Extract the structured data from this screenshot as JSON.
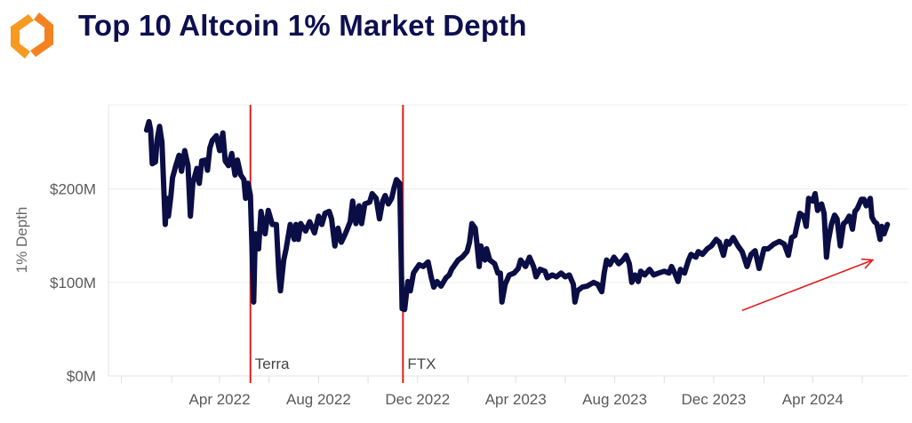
{
  "header": {
    "title": "Top 10 Altcoin 1% Market Depth",
    "logo_colors": [
      "#f7a12a",
      "#f37a1f"
    ]
  },
  "chart_data": {
    "type": "line",
    "title": "Top 10 Altcoin 1% Market Depth",
    "xlabel": "",
    "ylabel": "1% Depth",
    "xlim": [
      "2021-11-15",
      "2024-07-28"
    ],
    "ylim": [
      0,
      290
    ],
    "grid": true,
    "y_ticks": [
      0,
      100,
      200
    ],
    "y_tick_labels": [
      "$0M",
      "$100M",
      "$200M"
    ],
    "x_ticks": [
      "2021-12-01",
      "2022-02-01",
      "2022-04-01",
      "2022-06-01",
      "2022-08-01",
      "2022-10-01",
      "2022-12-01",
      "2023-02-01",
      "2023-04-01",
      "2023-06-01",
      "2023-08-01",
      "2023-10-01",
      "2023-12-01",
      "2024-02-01",
      "2024-04-01",
      "2024-06-01"
    ],
    "x_tick_labels": [
      {
        "date": "2022-04-01",
        "label": "Apr 2022"
      },
      {
        "date": "2022-08-01",
        "label": "Aug 2022"
      },
      {
        "date": "2022-12-01",
        "label": "Dec 2022"
      },
      {
        "date": "2023-04-01",
        "label": "Apr 2023"
      },
      {
        "date": "2023-08-01",
        "label": "Aug 2023"
      },
      {
        "date": "2023-12-01",
        "label": "Dec 2023"
      },
      {
        "date": "2024-04-01",
        "label": "Apr 2024"
      }
    ],
    "line_color": "#0b0d45",
    "annotation_color": "#e01e1e",
    "events": [
      {
        "date": "2022-05-09",
        "label": "Terra"
      },
      {
        "date": "2022-11-13",
        "label": "FTX"
      }
    ],
    "trend_arrow": {
      "from": [
        "2024-01-05",
        70
      ],
      "to": [
        "2024-06-14",
        124
      ]
    },
    "series": [
      {
        "values": [
          [
            "2022-01-01",
            263
          ],
          [
            "2022-01-04",
            272
          ],
          [
            "2022-01-06",
            263
          ],
          [
            "2022-01-08",
            227
          ],
          [
            "2022-01-12",
            229
          ],
          [
            "2022-01-14",
            253
          ],
          [
            "2022-01-17",
            267
          ],
          [
            "2022-01-20",
            250
          ],
          [
            "2022-01-24",
            162
          ],
          [
            "2022-01-26",
            190
          ],
          [
            "2022-01-28",
            171
          ],
          [
            "2022-01-31",
            193
          ],
          [
            "2022-02-02",
            212
          ],
          [
            "2022-02-06",
            225
          ],
          [
            "2022-02-10",
            236
          ],
          [
            "2022-02-13",
            219
          ],
          [
            "2022-02-17",
            241
          ],
          [
            "2022-02-21",
            225
          ],
          [
            "2022-02-24",
            171
          ],
          [
            "2022-02-27",
            206
          ],
          [
            "2022-03-04",
            222
          ],
          [
            "2022-03-07",
            206
          ],
          [
            "2022-03-10",
            230
          ],
          [
            "2022-03-15",
            231
          ],
          [
            "2022-03-17",
            220
          ],
          [
            "2022-03-20",
            244
          ],
          [
            "2022-03-23",
            252
          ],
          [
            "2022-03-28",
            257
          ],
          [
            "2022-04-01",
            241
          ],
          [
            "2022-04-05",
            260
          ],
          [
            "2022-04-08",
            230
          ],
          [
            "2022-04-12",
            225
          ],
          [
            "2022-04-16",
            238
          ],
          [
            "2022-04-20",
            215
          ],
          [
            "2022-04-23",
            231
          ],
          [
            "2022-04-27",
            215
          ],
          [
            "2022-05-01",
            210
          ],
          [
            "2022-05-03",
            190
          ],
          [
            "2022-05-06",
            206
          ],
          [
            "2022-05-09",
            193
          ],
          [
            "2022-05-13",
            79
          ],
          [
            "2022-05-15",
            152
          ],
          [
            "2022-05-19",
            136
          ],
          [
            "2022-05-22",
            176
          ],
          [
            "2022-05-27",
            152
          ],
          [
            "2022-05-31",
            177
          ],
          [
            "2022-06-05",
            162
          ],
          [
            "2022-06-10",
            162
          ],
          [
            "2022-06-13",
            110
          ],
          [
            "2022-06-15",
            91
          ],
          [
            "2022-06-19",
            124
          ],
          [
            "2022-06-22",
            136
          ],
          [
            "2022-06-27",
            162
          ],
          [
            "2022-07-02",
            146
          ],
          [
            "2022-07-04",
            162
          ],
          [
            "2022-07-07",
            146
          ],
          [
            "2022-07-10",
            163
          ],
          [
            "2022-07-16",
            155
          ],
          [
            "2022-07-21",
            165
          ],
          [
            "2022-07-27",
            153
          ],
          [
            "2022-08-01",
            171
          ],
          [
            "2022-08-05",
            162
          ],
          [
            "2022-08-09",
            174
          ],
          [
            "2022-08-14",
            176
          ],
          [
            "2022-08-17",
            168
          ],
          [
            "2022-08-21",
            139
          ],
          [
            "2022-08-25",
            158
          ],
          [
            "2022-08-29",
            143
          ],
          [
            "2022-09-03",
            152
          ],
          [
            "2022-09-09",
            165
          ],
          [
            "2022-09-12",
            187
          ],
          [
            "2022-09-16",
            163
          ],
          [
            "2022-09-20",
            182
          ],
          [
            "2022-09-23",
            163
          ],
          [
            "2022-09-27",
            184
          ],
          [
            "2022-10-03",
            186
          ],
          [
            "2022-10-06",
            195
          ],
          [
            "2022-10-11",
            190
          ],
          [
            "2022-10-15",
            168
          ],
          [
            "2022-10-19",
            187
          ],
          [
            "2022-10-22",
            193
          ],
          [
            "2022-10-26",
            184
          ],
          [
            "2022-10-30",
            190
          ],
          [
            "2022-11-02",
            201
          ],
          [
            "2022-11-05",
            210
          ],
          [
            "2022-11-09",
            206
          ],
          [
            "2022-11-12",
            72
          ],
          [
            "2022-11-15",
            71
          ],
          [
            "2022-11-19",
            101
          ],
          [
            "2022-11-22",
            91
          ],
          [
            "2022-11-26",
            110
          ],
          [
            "2022-11-29",
            114
          ],
          [
            "2022-12-03",
            119
          ],
          [
            "2022-12-08",
            117
          ],
          [
            "2022-12-14",
            122
          ],
          [
            "2022-12-18",
            105
          ],
          [
            "2022-12-21",
            95
          ],
          [
            "2022-12-25",
            101
          ],
          [
            "2022-12-30",
            96
          ],
          [
            "2023-01-05",
            105
          ],
          [
            "2023-01-09",
            108
          ],
          [
            "2023-01-12",
            114
          ],
          [
            "2023-01-20",
            124
          ],
          [
            "2023-01-25",
            127
          ],
          [
            "2023-01-31",
            133
          ],
          [
            "2023-02-03",
            143
          ],
          [
            "2023-02-06",
            163
          ],
          [
            "2023-02-10",
            158
          ],
          [
            "2023-02-12",
            143
          ],
          [
            "2023-02-15",
            117
          ],
          [
            "2023-02-17",
            139
          ],
          [
            "2023-02-22",
            124
          ],
          [
            "2023-02-24",
            136
          ],
          [
            "2023-02-28",
            124
          ],
          [
            "2023-03-06",
            120
          ],
          [
            "2023-03-10",
            110
          ],
          [
            "2023-03-13",
            110
          ],
          [
            "2023-03-15",
            79
          ],
          [
            "2023-03-19",
            98
          ],
          [
            "2023-03-24",
            108
          ],
          [
            "2023-03-30",
            110
          ],
          [
            "2023-04-04",
            115
          ],
          [
            "2023-04-07",
            124
          ],
          [
            "2023-04-13",
            117
          ],
          [
            "2023-04-18",
            127
          ],
          [
            "2023-04-23",
            117
          ],
          [
            "2023-04-26",
            106
          ],
          [
            "2023-05-01",
            114
          ],
          [
            "2023-05-07",
            112
          ],
          [
            "2023-05-10",
            105
          ],
          [
            "2023-05-16",
            108
          ],
          [
            "2023-05-21",
            106
          ],
          [
            "2023-05-27",
            110
          ],
          [
            "2023-06-01",
            106
          ],
          [
            "2023-06-06",
            108
          ],
          [
            "2023-06-11",
            98
          ],
          [
            "2023-06-13",
            79
          ],
          [
            "2023-06-16",
            91
          ],
          [
            "2023-06-22",
            95
          ],
          [
            "2023-06-28",
            96
          ],
          [
            "2023-07-06",
            100
          ],
          [
            "2023-07-11",
            98
          ],
          [
            "2023-07-16",
            90
          ],
          [
            "2023-07-19",
            110
          ],
          [
            "2023-07-22",
            124
          ],
          [
            "2023-07-26",
            119
          ],
          [
            "2023-07-31",
            127
          ],
          [
            "2023-08-06",
            120
          ],
          [
            "2023-08-11",
            124
          ],
          [
            "2023-08-15",
            129
          ],
          [
            "2023-08-19",
            120
          ],
          [
            "2023-08-22",
            100
          ],
          [
            "2023-08-26",
            108
          ],
          [
            "2023-08-30",
            101
          ],
          [
            "2023-09-02",
            112
          ],
          [
            "2023-09-07",
            108
          ],
          [
            "2023-09-13",
            114
          ],
          [
            "2023-09-18",
            108
          ],
          [
            "2023-09-24",
            110
          ],
          [
            "2023-10-01",
            112
          ],
          [
            "2023-10-07",
            110
          ],
          [
            "2023-10-10",
            117
          ],
          [
            "2023-10-14",
            110
          ],
          [
            "2023-10-18",
            101
          ],
          [
            "2023-10-21",
            114
          ],
          [
            "2023-10-26",
            110
          ],
          [
            "2023-10-31",
            124
          ],
          [
            "2023-11-03",
            130
          ],
          [
            "2023-11-09",
            127
          ],
          [
            "2023-11-12",
            133
          ],
          [
            "2023-11-17",
            130
          ],
          [
            "2023-11-23",
            136
          ],
          [
            "2023-11-28",
            139
          ],
          [
            "2023-12-04",
            146
          ],
          [
            "2023-12-08",
            143
          ],
          [
            "2023-12-13",
            129
          ],
          [
            "2023-12-17",
            144
          ],
          [
            "2023-12-20",
            141
          ],
          [
            "2023-12-25",
            148
          ],
          [
            "2023-12-31",
            139
          ],
          [
            "2024-01-05",
            133
          ],
          [
            "2024-01-11",
            117
          ],
          [
            "2024-01-16",
            130
          ],
          [
            "2024-01-21",
            134
          ],
          [
            "2024-01-26",
            115
          ],
          [
            "2024-02-01",
            136
          ],
          [
            "2024-02-06",
            136
          ],
          [
            "2024-02-13",
            141
          ],
          [
            "2024-02-20",
            144
          ],
          [
            "2024-02-26",
            141
          ],
          [
            "2024-03-02",
            129
          ],
          [
            "2024-03-06",
            148
          ],
          [
            "2024-03-10",
            150
          ],
          [
            "2024-03-13",
            162
          ],
          [
            "2024-03-16",
            174
          ],
          [
            "2024-03-21",
            171
          ],
          [
            "2024-03-24",
            160
          ],
          [
            "2024-03-27",
            190
          ],
          [
            "2024-04-01",
            187
          ],
          [
            "2024-04-04",
            195
          ],
          [
            "2024-04-07",
            177
          ],
          [
            "2024-04-12",
            184
          ],
          [
            "2024-04-15",
            174
          ],
          [
            "2024-04-18",
            127
          ],
          [
            "2024-04-20",
            143
          ],
          [
            "2024-04-24",
            162
          ],
          [
            "2024-04-28",
            172
          ],
          [
            "2024-05-01",
            168
          ],
          [
            "2024-05-05",
            139
          ],
          [
            "2024-05-09",
            163
          ],
          [
            "2024-05-12",
            165
          ],
          [
            "2024-05-16",
            171
          ],
          [
            "2024-05-20",
            157
          ],
          [
            "2024-05-23",
            176
          ],
          [
            "2024-05-26",
            179
          ],
          [
            "2024-05-31",
            189
          ],
          [
            "2024-06-03",
            189
          ],
          [
            "2024-06-06",
            182
          ],
          [
            "2024-06-11",
            190
          ],
          [
            "2024-06-13",
            170
          ],
          [
            "2024-06-16",
            165
          ],
          [
            "2024-06-19",
            163
          ],
          [
            "2024-06-23",
            146
          ],
          [
            "2024-06-25",
            160
          ],
          [
            "2024-06-28",
            152
          ],
          [
            "2024-07-02",
            162
          ]
        ]
      }
    ]
  }
}
